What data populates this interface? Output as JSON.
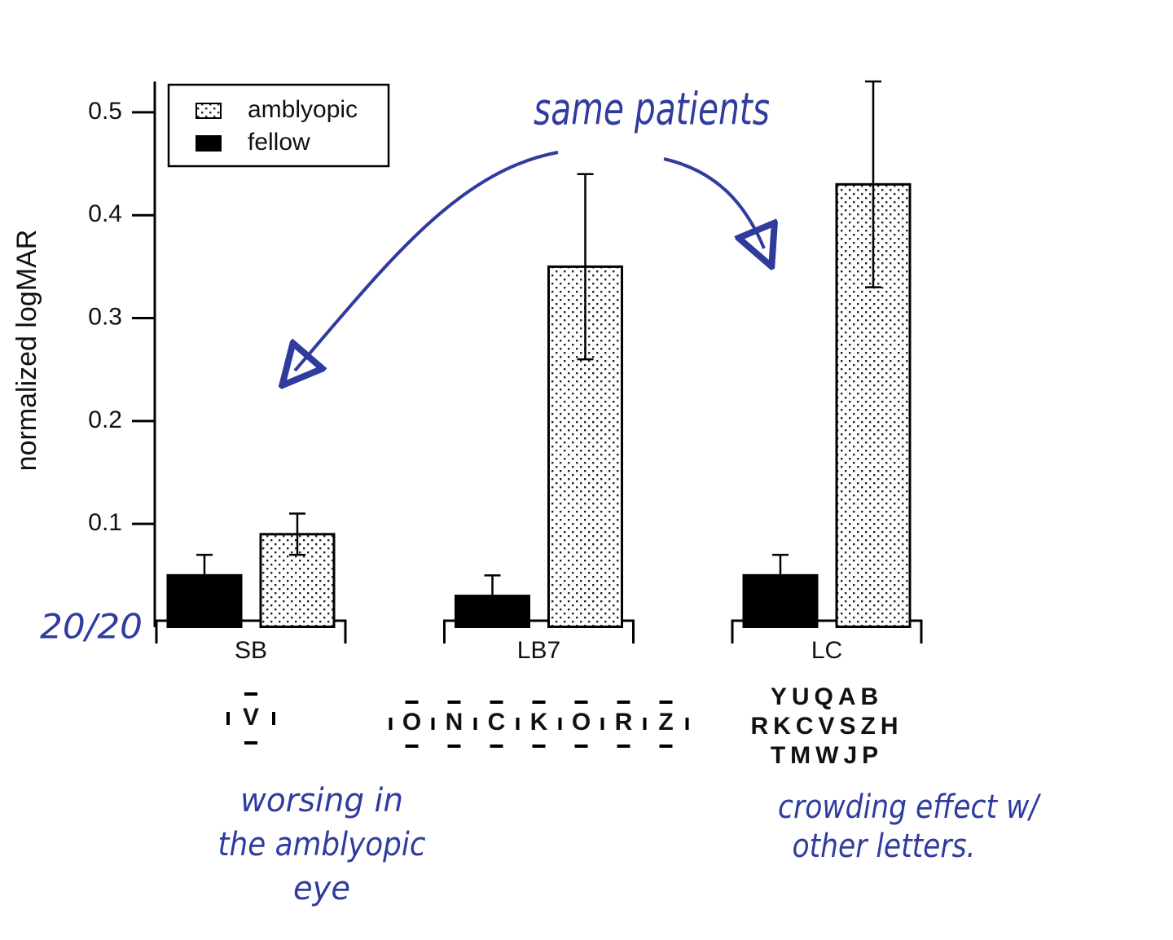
{
  "chart_data": {
    "type": "bar",
    "ylabel": "normalized logMAR",
    "categories": [
      "SB",
      "LB7",
      "LC"
    ],
    "series": [
      {
        "name": "amblyopic",
        "color": "#000000",
        "pattern": "dots",
        "values": [
          0.09,
          0.35,
          0.43
        ],
        "errors": [
          0.02,
          0.09,
          0.1
        ]
      },
      {
        "name": "fellow",
        "color": "#000000",
        "values": [
          0.05,
          0.03,
          0.05
        ],
        "errors": [
          0.02,
          0.02,
          0.02
        ]
      }
    ],
    "ylim": [
      0,
      0.53
    ],
    "yticks": [
      0.1,
      0.2,
      0.3,
      0.4,
      0.5
    ],
    "legend": "upper left",
    "stimuli": [
      [
        "V"
      ],
      [
        "O",
        "N",
        "C",
        "K",
        "O",
        "R",
        "Z"
      ],
      [
        "YUQAB",
        "RKCVSZH",
        "TMWJP"
      ]
    ],
    "annotations": [
      {
        "lines": [
          "same patients"
        ]
      },
      {
        "lines": [
          "20/20"
        ]
      },
      {
        "lines": [
          "worsing in",
          "the amblyopic",
          "eye"
        ]
      },
      {
        "lines": [
          "crowding effect w/",
          "other letters."
        ]
      }
    ]
  }
}
